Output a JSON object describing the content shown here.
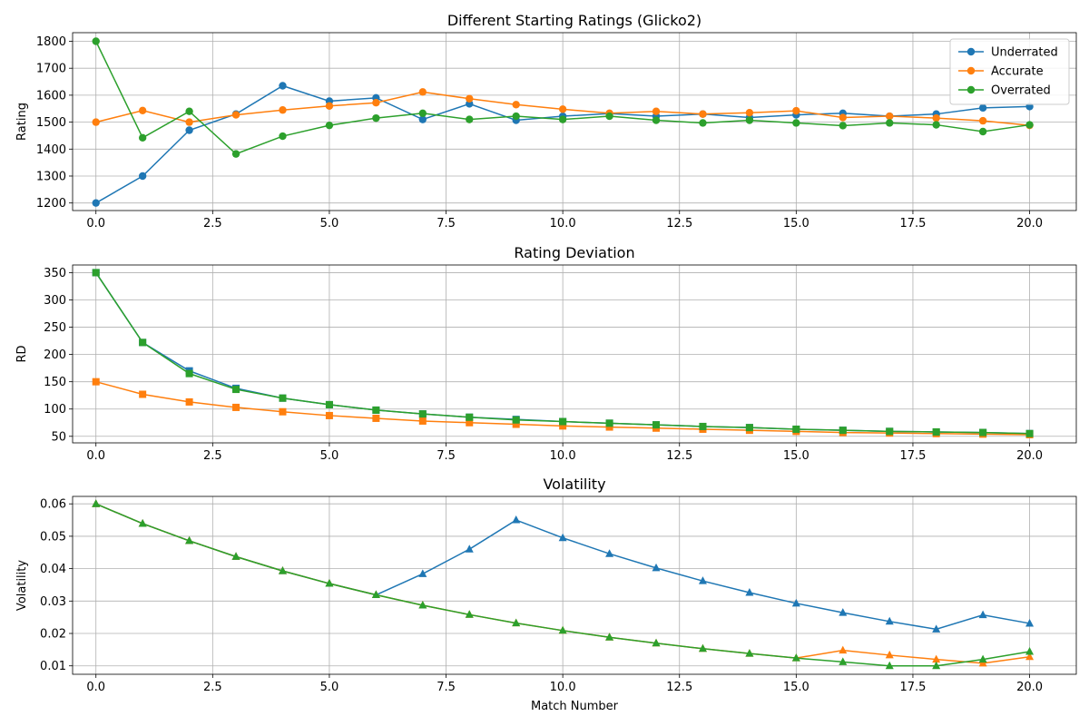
{
  "chart_data": [
    {
      "type": "line",
      "title": "Different Starting Ratings (Glicko2)",
      "xlabel": "",
      "ylabel": "Rating",
      "xlim": [
        -0.5,
        21.0
      ],
      "ylim": [
        1172,
        1832
      ],
      "x_ticks": [
        "0.0",
        "2.5",
        "5.0",
        "7.5",
        "10.0",
        "12.5",
        "15.0",
        "17.5",
        "20.0"
      ],
      "y_ticks": [
        "1200",
        "1300",
        "1400",
        "1500",
        "1600",
        "1700",
        "1800"
      ],
      "grid": true,
      "legend": "top-right",
      "marker": "circle",
      "series": [
        {
          "name": "Underrated",
          "color": "#1f77b4",
          "values": [
            1200,
            1300,
            1470,
            1530,
            1635,
            1578,
            1590,
            1510,
            1568,
            1507,
            1522,
            1532,
            1522,
            1530,
            1517,
            1527,
            1533,
            1522,
            1530,
            1553,
            1558
          ]
        },
        {
          "name": "Accurate",
          "color": "#ff7f0e",
          "values": [
            1500,
            1543,
            1500,
            1527,
            1545,
            1560,
            1572,
            1612,
            1587,
            1565,
            1548,
            1533,
            1540,
            1530,
            1535,
            1542,
            1517,
            1522,
            1515,
            1505,
            1488
          ]
        },
        {
          "name": "Overrated",
          "color": "#2ca02c",
          "values": [
            1800,
            1442,
            1540,
            1382,
            1448,
            1488,
            1515,
            1533,
            1510,
            1522,
            1510,
            1522,
            1507,
            1497,
            1507,
            1497,
            1487,
            1497,
            1490,
            1465,
            1490
          ]
        }
      ]
    },
    {
      "type": "line",
      "title": "Rating Deviation",
      "xlabel": "",
      "ylabel": "RD",
      "xlim": [
        -0.5,
        21.0
      ],
      "ylim": [
        38,
        364
      ],
      "x_ticks": [
        "0.0",
        "2.5",
        "5.0",
        "7.5",
        "10.0",
        "12.5",
        "15.0",
        "17.5",
        "20.0"
      ],
      "y_ticks": [
        "50",
        "100",
        "150",
        "200",
        "250",
        "300",
        "350"
      ],
      "grid": true,
      "marker": "square",
      "series": [
        {
          "color": "#1f77b4",
          "values": [
            350,
            222,
            170,
            138,
            120,
            108,
            98,
            91,
            85,
            81,
            77,
            74,
            71,
            68,
            66,
            63,
            61,
            59,
            58,
            57,
            55
          ]
        },
        {
          "color": "#ff7f0e",
          "values": [
            150,
            127,
            113,
            103,
            95,
            88,
            83,
            78,
            75,
            72,
            69,
            67,
            65,
            63,
            61,
            59,
            57,
            56,
            55,
            54,
            53
          ]
        },
        {
          "color": "#2ca02c",
          "values": [
            350,
            222,
            165,
            136,
            120,
            108,
            98,
            91,
            85,
            80,
            77,
            74,
            71,
            68,
            66,
            63,
            61,
            59,
            58,
            57,
            55
          ]
        }
      ]
    },
    {
      "type": "line",
      "title": "Volatility",
      "xlabel": "Match Number",
      "ylabel": "Volatility",
      "xlim": [
        -0.5,
        21.0
      ],
      "ylim": [
        0.0074,
        0.0623
      ],
      "x_ticks": [
        "0.0",
        "2.5",
        "5.0",
        "7.5",
        "10.0",
        "12.5",
        "15.0",
        "17.5",
        "20.0"
      ],
      "y_ticks": [
        "0.01",
        "0.02",
        "0.03",
        "0.04",
        "0.05",
        "0.06"
      ],
      "grid": true,
      "marker": "triangle",
      "series": [
        {
          "color": "#1f77b4",
          "values": [
            0.06,
            0.0539,
            0.0486,
            0.0437,
            0.0393,
            0.0354,
            0.0319,
            0.0384,
            0.046,
            0.055,
            0.0495,
            0.0446,
            0.0402,
            0.0362,
            0.0326,
            0.0293,
            0.0264,
            0.0237,
            0.0213,
            0.0257,
            0.0231
          ]
        },
        {
          "color": "#ff7f0e",
          "values": [
            0.06,
            0.0539,
            0.0486,
            0.0437,
            0.0393,
            0.0354,
            0.0319,
            0.0287,
            0.0258,
            0.0232,
            0.0209,
            0.0188,
            0.017,
            0.0153,
            0.0138,
            0.0124,
            0.0148,
            0.0133,
            0.012,
            0.0108,
            0.0128
          ]
        },
        {
          "color": "#2ca02c",
          "values": [
            0.06,
            0.0539,
            0.0486,
            0.0437,
            0.0393,
            0.0354,
            0.0319,
            0.0287,
            0.0258,
            0.0232,
            0.0209,
            0.0188,
            0.017,
            0.0153,
            0.0138,
            0.0124,
            0.0112,
            0.01,
            0.01,
            0.012,
            0.0144
          ]
        }
      ]
    }
  ]
}
